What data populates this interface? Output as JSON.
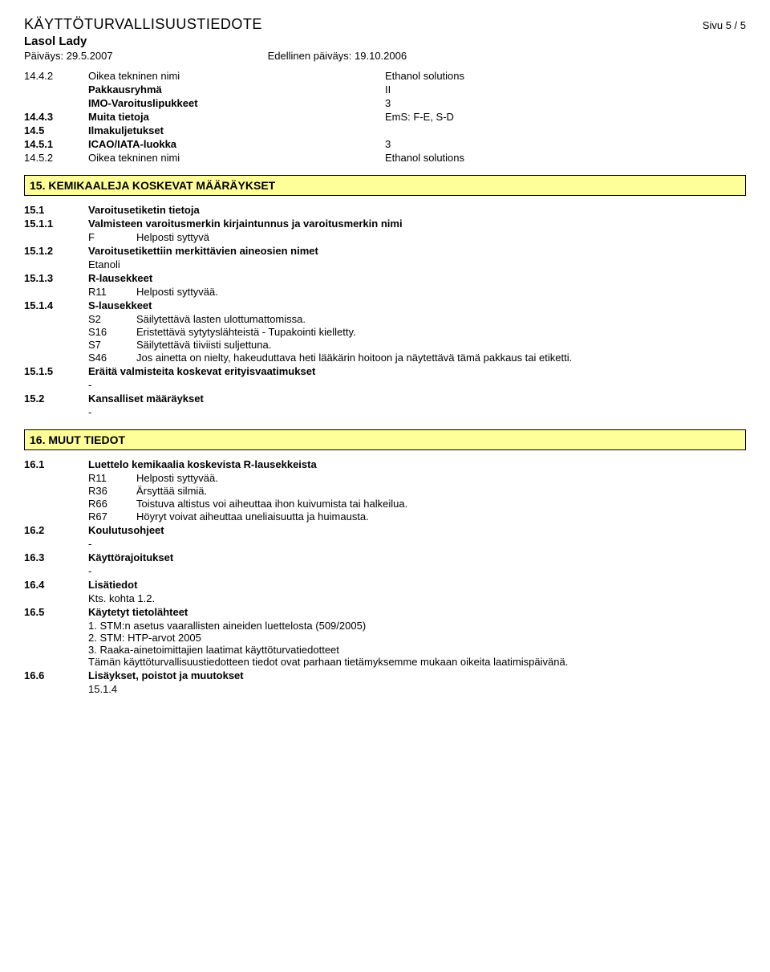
{
  "header": {
    "doc_title": "KÄYTTÖTURVALLISUUSTIEDOTE",
    "page": "Sivu  5 / 5",
    "product": "Lasol Lady",
    "date_label": "Päiväys: 29.5.2007",
    "prev_date_label": "Edellinen päiväys: 19.10.2006"
  },
  "s14": {
    "r1": {
      "num": "14.4.2",
      "label": "Oikea tekninen nimi",
      "val": "Ethanol solutions"
    },
    "r2": {
      "label": "Pakkausryhmä",
      "val": "II"
    },
    "r3": {
      "label": "IMO-Varoituslipukkeet",
      "val": "3"
    },
    "r4": {
      "num": "14.4.3",
      "label": "Muita tietoja",
      "val": "EmS: F-E, S-D"
    },
    "r5": {
      "num": "14.5",
      "label": "Ilmakuljetukset"
    },
    "r6": {
      "num": "14.5.1",
      "label": "ICAO/IATA-luokka",
      "val": "3"
    },
    "r7": {
      "num": "14.5.2",
      "label": "Oikea tekninen nimi",
      "val": "Ethanol solutions"
    }
  },
  "s15": {
    "title": "15. KEMIKAALEJA KOSKEVAT MÄÄRÄYKSET",
    "r1": {
      "num": "15.1",
      "label": "Varoitusetiketin tietoja"
    },
    "r2": {
      "num": "15.1.1",
      "label": "Valmisteen varoitusmerkin kirjaintunnus ja varoitusmerkin nimi"
    },
    "r2sub": {
      "code": "F",
      "text": "Helposti syttyvä"
    },
    "r3": {
      "num": "15.1.2",
      "label": "Varoitusetikettiin merkittävien aineosien nimet"
    },
    "r3sub": "Etanoli",
    "r4": {
      "num": "15.1.3",
      "label": "R-lausekkeet"
    },
    "r4sub": {
      "code": "R11",
      "text": "Helposti syttyvää."
    },
    "r5": {
      "num": "15.1.4",
      "label": "S-lausekkeet"
    },
    "r5s": [
      {
        "code": "S2",
        "text": "Säilytettävä lasten ulottumattomissa."
      },
      {
        "code": "S16",
        "text": "Eristettävä sytytyslähteistä - Tupakointi kielletty."
      },
      {
        "code": "S7",
        "text": "Säilytettävä tiiviisti suljettuna."
      },
      {
        "code": "S46",
        "text": "Jos ainetta on nielty, hakeuduttava heti lääkärin hoitoon ja näytettävä tämä pakkaus tai etiketti."
      }
    ],
    "r6": {
      "num": "15.1.5",
      "label": "Eräitä valmisteita koskevat erityisvaatimukset"
    },
    "r6sub": "-",
    "r7": {
      "num": "15.2",
      "label": "Kansalliset määräykset"
    },
    "r7sub": "-"
  },
  "s16": {
    "title": "16. MUUT TIEDOT",
    "r1": {
      "num": "16.1",
      "label": "Luettelo kemikaalia koskevista R-lausekkeista"
    },
    "r1s": [
      {
        "code": "R11",
        "text": "Helposti syttyvää."
      },
      {
        "code": "R36",
        "text": "Ärsyttää silmiä."
      },
      {
        "code": "R66",
        "text": "Toistuva altistus voi aiheuttaa ihon kuivumista tai halkeilua."
      },
      {
        "code": "R67",
        "text": "Höyryt voivat aiheuttaa uneliaisuutta ja huimausta."
      }
    ],
    "r2": {
      "num": "16.2",
      "label": "Koulutusohjeet"
    },
    "r2sub": "-",
    "r3": {
      "num": "16.3",
      "label": "Käyttörajoitukset"
    },
    "r3sub": "-",
    "r4": {
      "num": "16.4",
      "label": "Lisätiedot"
    },
    "r4sub": "Kts. kohta 1.2.",
    "r5": {
      "num": "16.5",
      "label": "Käytetyt tietolähteet"
    },
    "r5s": [
      "1. STM:n asetus vaarallisten aineiden luettelosta (509/2005)",
      "2. STM: HTP-arvot 2005",
      "3. Raaka-ainetoimittajien laatimat käyttöturvatiedotteet",
      "Tämän käyttöturvallisuustiedotteen tiedot ovat parhaan tietämyksemme mukaan oikeita laatimispäivänä."
    ],
    "r6": {
      "num": "16.6",
      "label": "Lisäykset, poistot ja muutokset"
    },
    "r6sub": "15.1.4"
  }
}
